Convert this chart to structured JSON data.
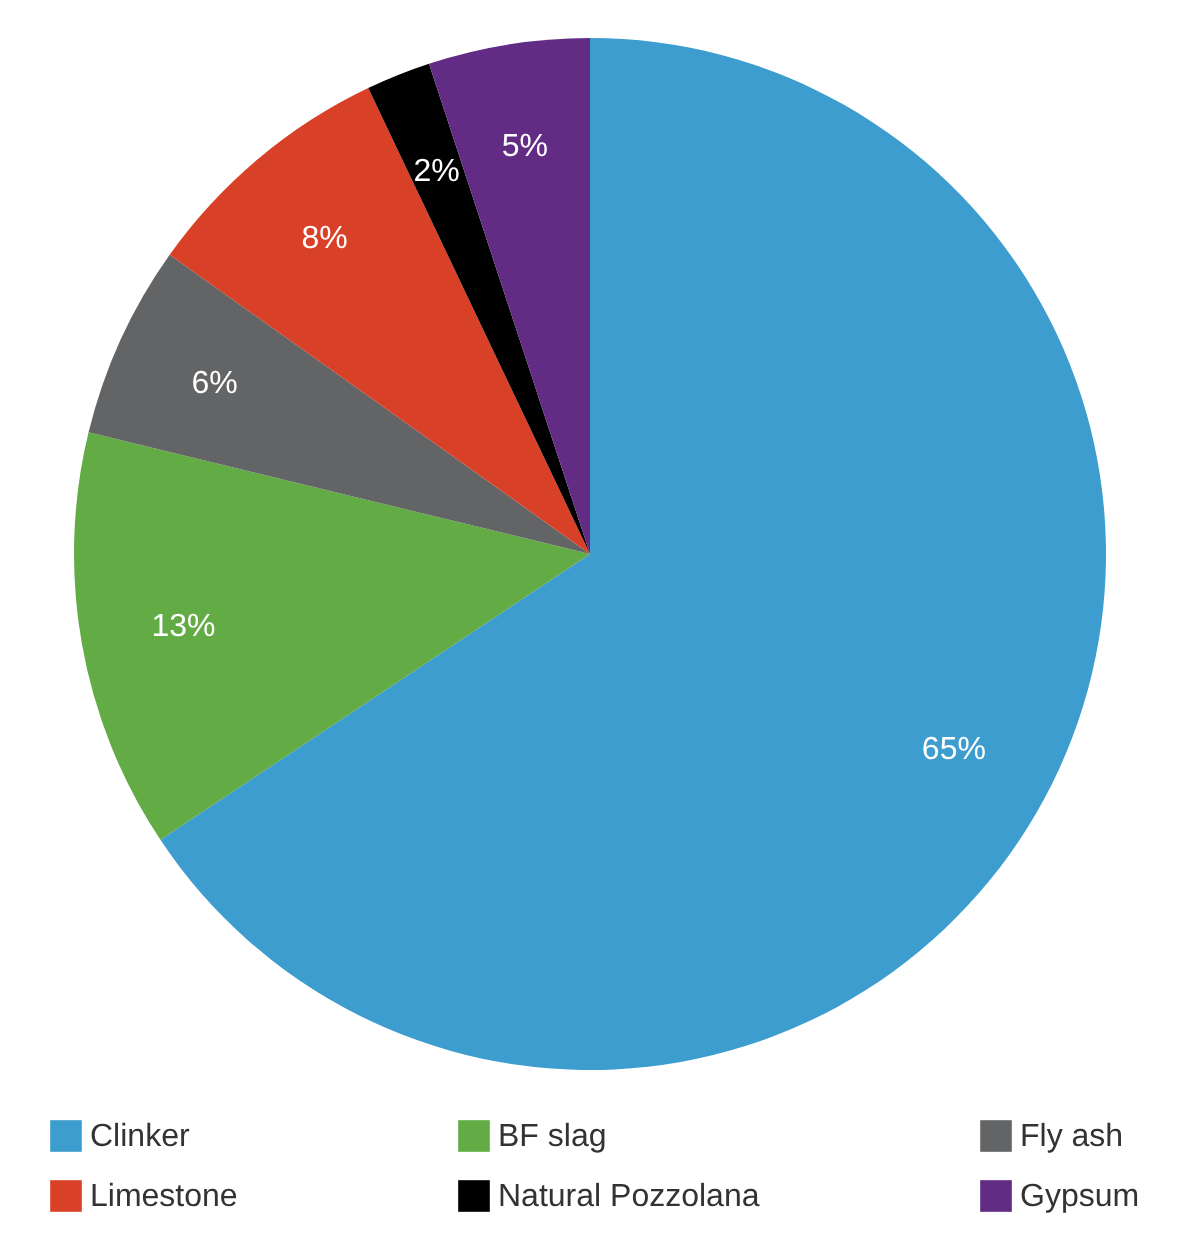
{
  "chart_data": {
    "type": "pie",
    "categories": [
      "Clinker",
      "BF slag",
      "Fly ash",
      "Limestone",
      "Natural Pozzolana",
      "Gypsum"
    ],
    "values": [
      65,
      13,
      6,
      8,
      2,
      5
    ],
    "colors": [
      "#3d9dce",
      "#62ab45",
      "#636466",
      "#d84127",
      "#000000",
      "#622c84"
    ],
    "value_labels": [
      "65%",
      "13%",
      "6%",
      "8%",
      "2%",
      "5%"
    ],
    "legend": "bottom"
  }
}
